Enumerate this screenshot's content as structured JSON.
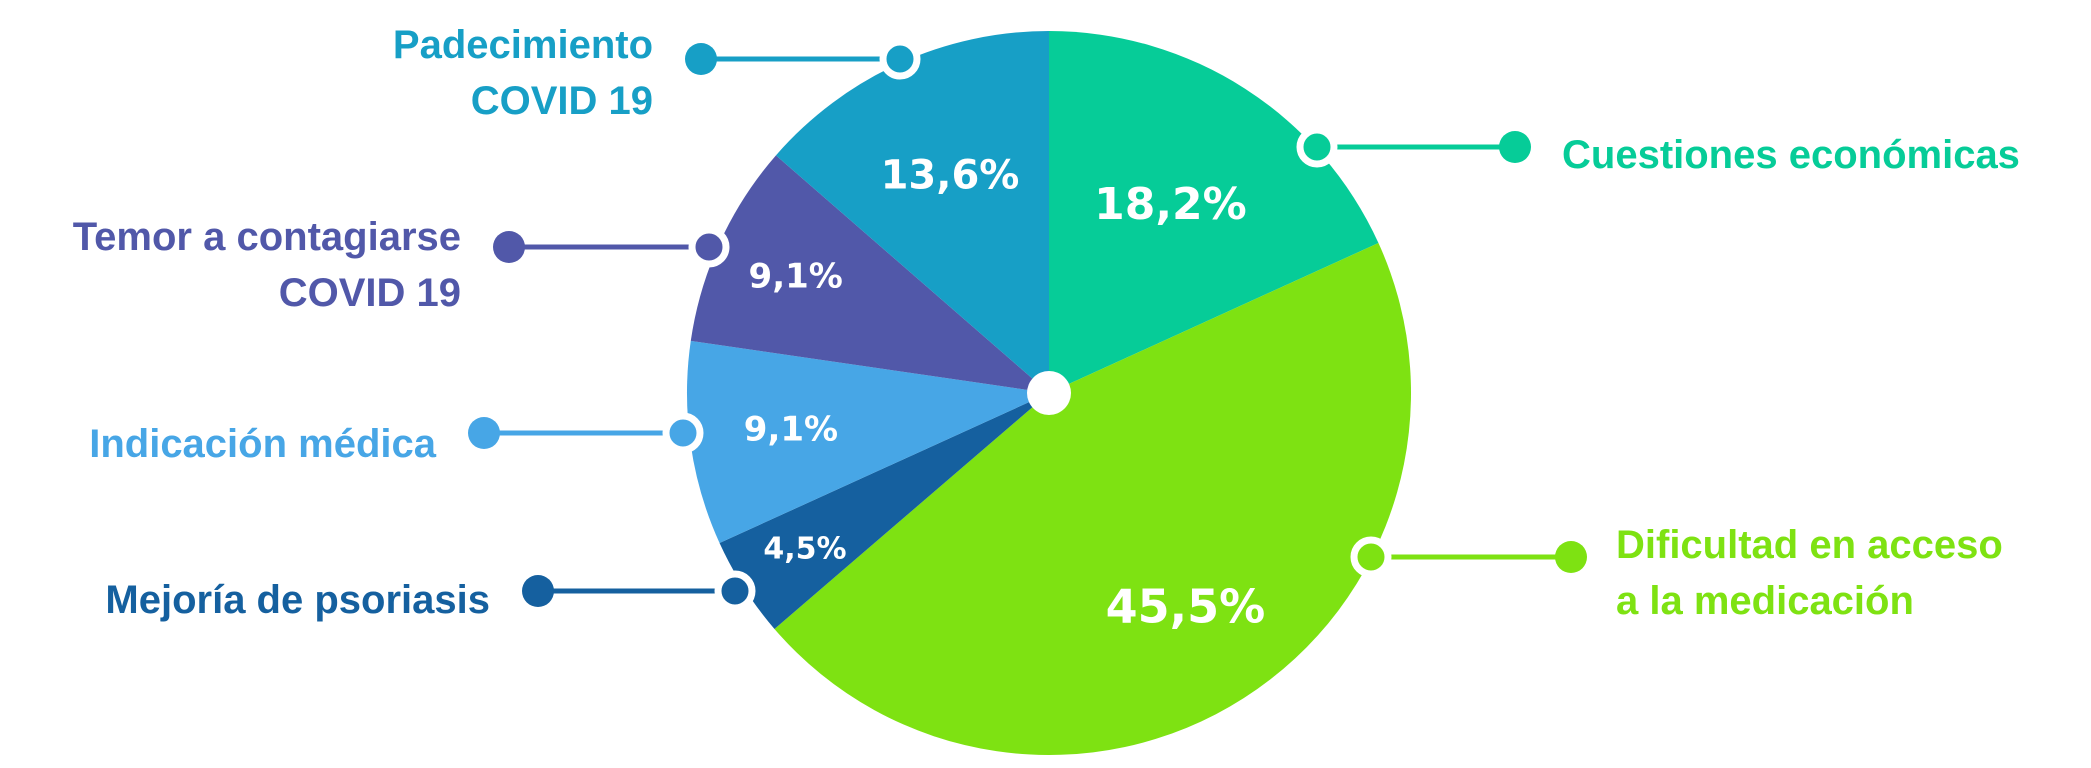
{
  "chart_data": {
    "type": "pie",
    "title": "",
    "start_angle_deg": 0,
    "direction": "clockwise",
    "slices": [
      {
        "label": "Cuestiones económicas",
        "value": 18.2,
        "value_label": "18,2%",
        "color": "#06cc98"
      },
      {
        "label": "Dificultad en acceso a la medicación",
        "label_lines": [
          "Dificultad en acceso",
          "a la medicación"
        ],
        "value": 45.5,
        "value_label": "45,5%",
        "color": "#7ee212"
      },
      {
        "label": "Mejoría de psoriasis",
        "value": 4.5,
        "value_label": "4,5%",
        "color": "#15609f"
      },
      {
        "label": "Indicación médica",
        "value": 9.1,
        "value_label": "9,1%",
        "color": "#47a6e6"
      },
      {
        "label": "Temor a contagiarse COVID 19",
        "label_lines": [
          "Temor a contagiarse",
          "COVID 19"
        ],
        "value": 9.1,
        "value_label": "9,1%",
        "color": "#5158a9"
      },
      {
        "label": "Padecimiento COVID 19",
        "label_lines": [
          "Padecimiento",
          "COVID 19"
        ],
        "value": 13.6,
        "value_label": "13,6%",
        "color": "#179fc6"
      }
    ]
  }
}
